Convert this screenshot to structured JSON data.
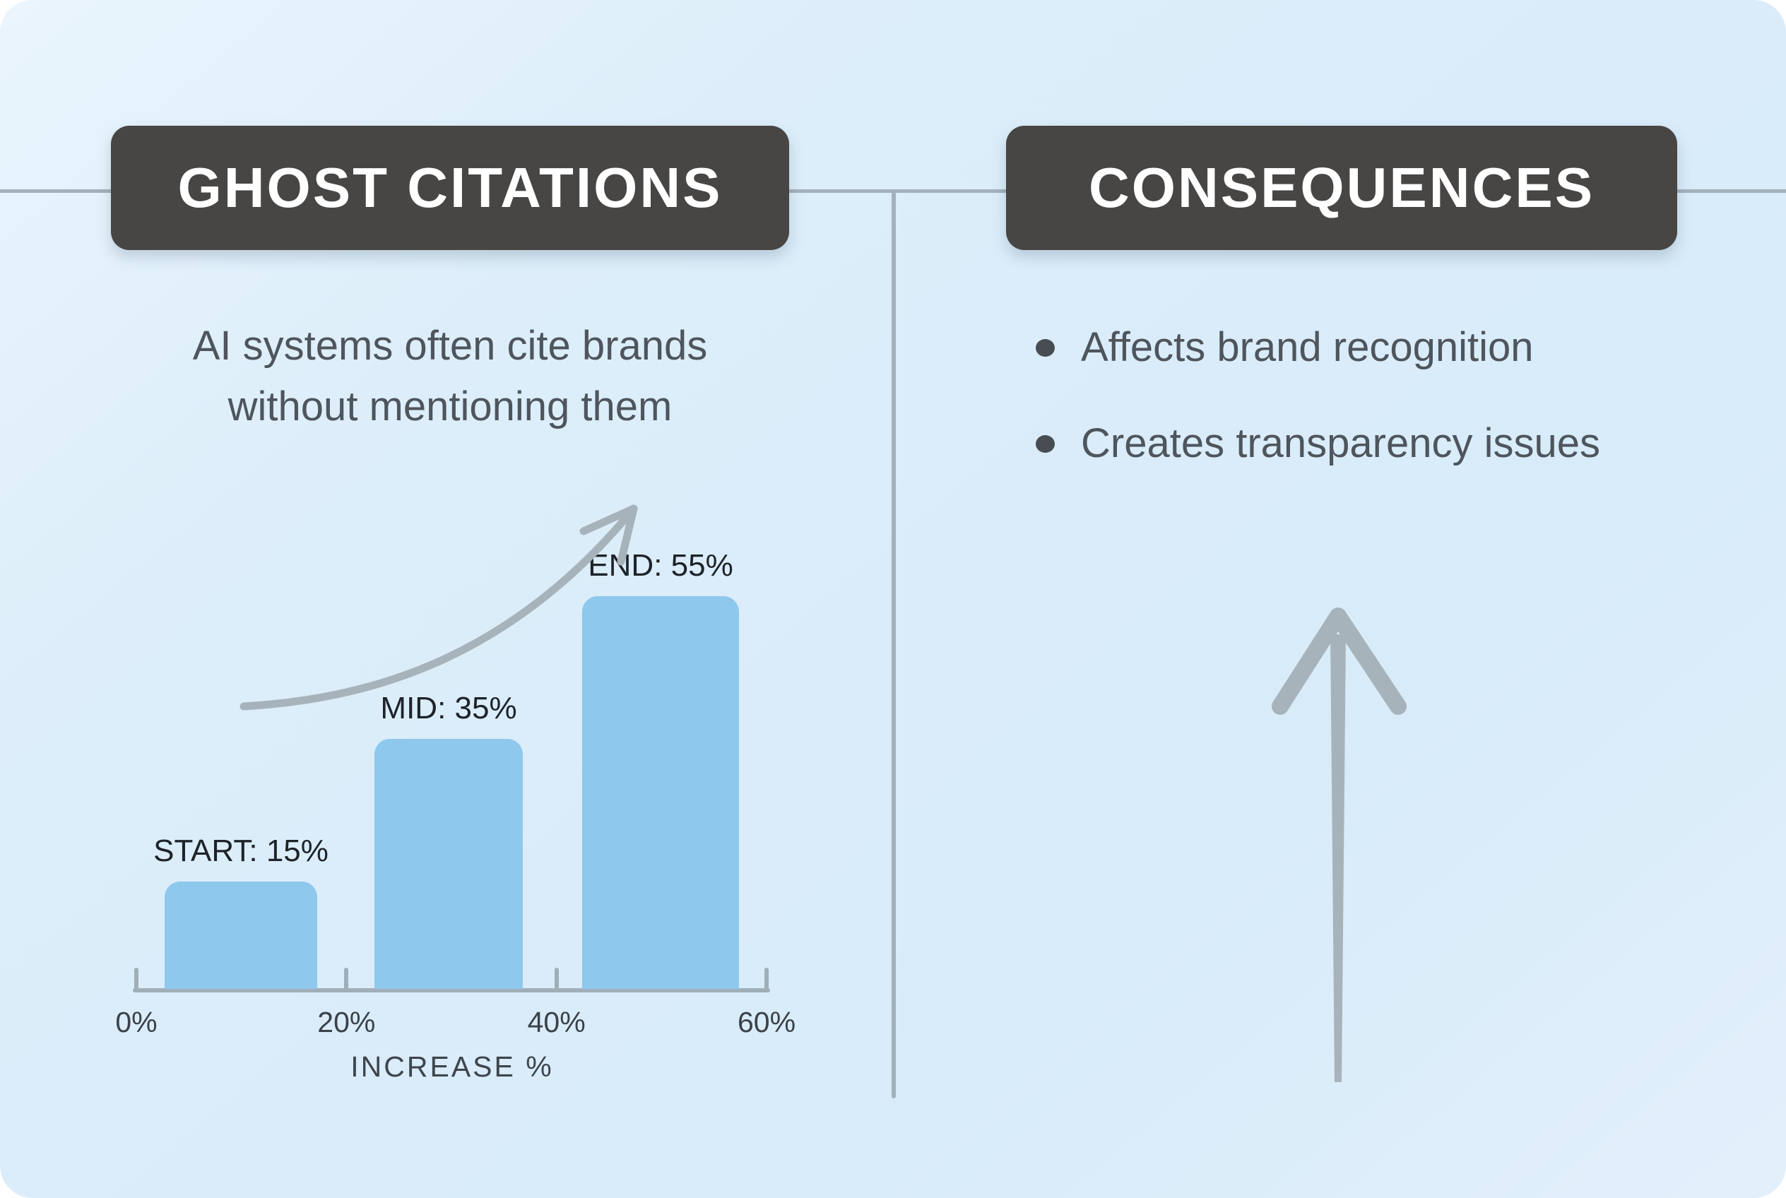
{
  "left_panel": {
    "title": "GHOST CITATIONS",
    "description_line1": "AI systems often cite brands",
    "description_line2": "without mentioning them"
  },
  "right_panel": {
    "title": "CONSEQUENCES",
    "bullets": [
      "Affects brand recognition",
      "Creates transparency issues"
    ]
  },
  "chart_data": {
    "type": "bar",
    "categories": [
      "START",
      "MID",
      "END"
    ],
    "values": [
      15,
      35,
      55
    ],
    "bar_labels": [
      "START: 15%",
      "MID: 35%",
      "END: 55%"
    ],
    "x_ticks": [
      "0%",
      "20%",
      "40%",
      "60%"
    ],
    "x_tick_values": [
      0,
      20,
      40,
      60
    ],
    "xlim": [
      0,
      60
    ],
    "xlabel": "INCREASE %",
    "ylabel": "",
    "title": "",
    "grid": false,
    "legend": "none",
    "bar_color": "#8ec8ed",
    "annotations": [
      "upward curved growth arrow over bars"
    ]
  },
  "colors": {
    "background": "#ddeefa",
    "title_box": "#474645",
    "title_text": "#ffffff",
    "body_text": "#4e555c",
    "bar_fill": "#8ec8ed",
    "axis_line": "#a0aeb8",
    "arrow": "#a7b3bb",
    "bar_label_text": "#1d2329"
  }
}
